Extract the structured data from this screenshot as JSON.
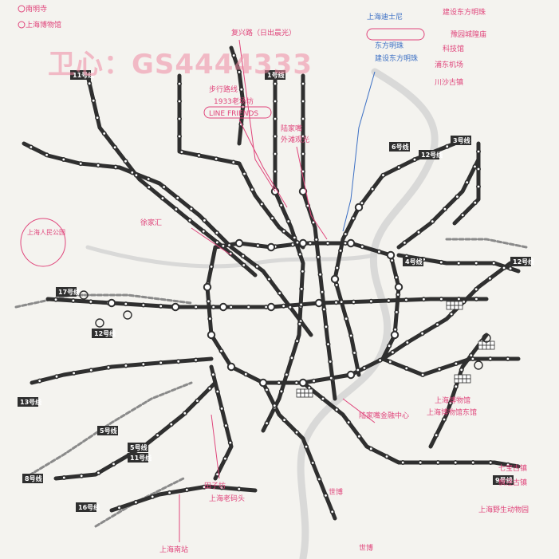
{
  "watermark": "卫心：GS4444333",
  "notes": {
    "top_left_1": "南明寺",
    "top_left_2": "上海博物馆",
    "top_center": "复兴路（日出晨光）",
    "tourist_1": "步行路线",
    "tourist_2": "1933老场坊",
    "tourist_3": "陆家嘴",
    "tourist_4": "外滩观光",
    "tourist_5": "上海迪士尼",
    "tourist_6": "LINE FRIENDS",
    "right_top_1": "东方明珠",
    "right_top_2": "建设东方明珠",
    "right_top_3": "豫园城隍庙",
    "right_top_4": "科技馆",
    "right_top_5": "浦东机场",
    "right_mid": "川沙古镇",
    "left_circle": "上海人民公园",
    "center_left": "徐家汇",
    "lower_right_1": "上海博物馆",
    "lower_right_2": "上海博物馆东馆",
    "lower_right_3": "陆家嘴金融中心",
    "bottom_center_1": "田子坊",
    "bottom_center_2": "上海老码头",
    "bottom_center_3": "世博",
    "bottom_left": "上海南站",
    "bottom_right_1": "七宝古镇",
    "bottom_right_2": "枫泾古镇",
    "bottom_right_3": "上海野生动物园"
  },
  "badges": [
    {
      "label": "11号线"
    },
    {
      "label": "1号线"
    },
    {
      "label": "3号线"
    },
    {
      "label": "6号线"
    },
    {
      "label": "12号线"
    },
    {
      "label": "4号线"
    },
    {
      "label": "12号线"
    },
    {
      "label": "17号线"
    },
    {
      "label": "12号线"
    },
    {
      "label": "13号线"
    },
    {
      "label": "5号线"
    },
    {
      "label": "5号线"
    },
    {
      "label": "11号线"
    },
    {
      "label": "8号线"
    },
    {
      "label": "16号线"
    },
    {
      "label": "9号线"
    }
  ],
  "colors": {
    "line": "#2f2f2f",
    "annotation": "#e0457b",
    "watermark": "#f08ba3",
    "river": "#d3d3d3",
    "paper": "#f4f3ef",
    "blue_annotation": "#3b6fc4"
  },
  "icons": [
    "map-pin-icon",
    "checkered-terminal-icon"
  ]
}
